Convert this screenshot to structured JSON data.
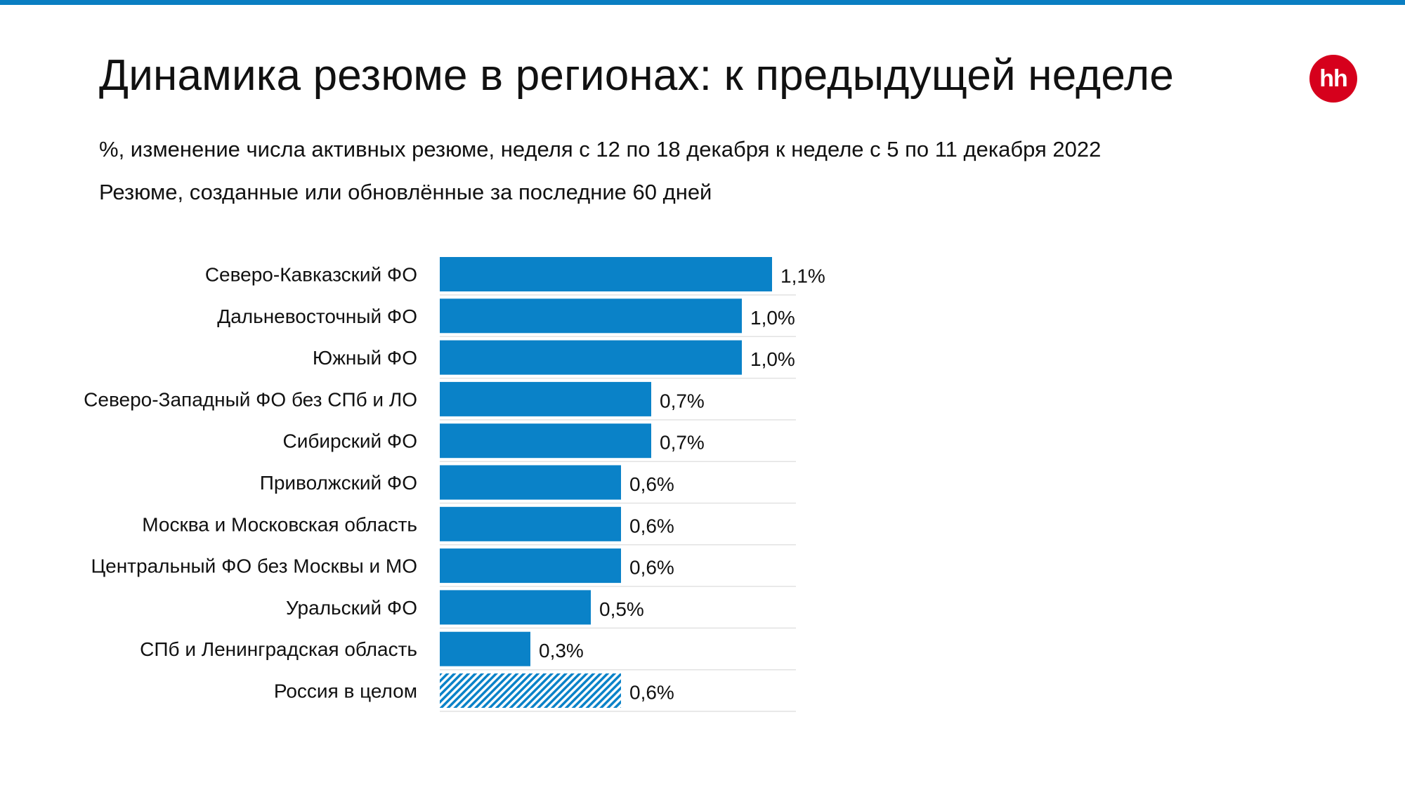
{
  "title": "Динамика резюме в регионах: к предыдущей неделе",
  "subtitle_1": "%, изменение числа активных резюме, неделя с 12 по 18 декабря к неделе с 5 по 11 декабря 2022",
  "subtitle_2": "Резюме, созданные или обновлённые за последние 60 дней",
  "logo_text": "hh",
  "colors": {
    "accent_bar": "#0a7ec2",
    "bar": "#0a82c8",
    "logo": "#d6001c",
    "divider": "#e2e2e2"
  },
  "chart_data": {
    "type": "bar",
    "orientation": "horizontal",
    "categories": [
      "Северо-Кавказский ФО",
      "Дальневосточный ФО",
      "Южный ФО",
      "Северо-Западный ФО без СПб и ЛО",
      "Сибирский ФО",
      "Приволжский ФО",
      "Москва и Московская область",
      "Центральный ФО без Москвы и МО",
      "Уральский ФО",
      "СПб и Ленинградская область",
      "Россия в целом"
    ],
    "values": [
      1.1,
      1.0,
      1.0,
      0.7,
      0.7,
      0.6,
      0.6,
      0.6,
      0.5,
      0.3,
      0.6
    ],
    "value_labels": [
      "1,1%",
      "1,0%",
      "1,0%",
      "0,7%",
      "0,7%",
      "0,6%",
      "0,6%",
      "0,6%",
      "0,5%",
      "0,3%",
      "0,6%"
    ],
    "hatched_categories": [
      "Россия в целом"
    ],
    "xlim": [
      0,
      1.2
    ],
    "grid": false,
    "legend": "none",
    "title": "",
    "xlabel": "",
    "ylabel": ""
  }
}
